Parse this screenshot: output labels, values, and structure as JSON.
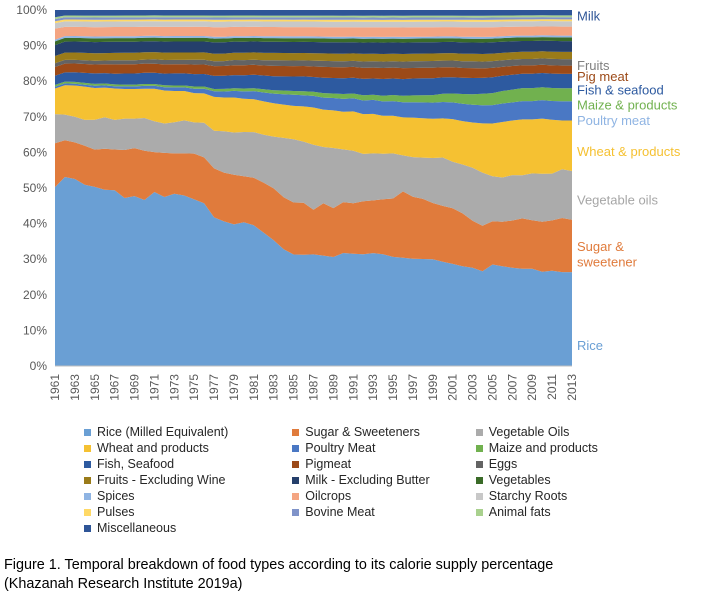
{
  "chart_data": {
    "type": "area",
    "stacked": "percent",
    "ylim": [
      0,
      100
    ],
    "y_ticks": [
      "0%",
      "10%",
      "20%",
      "30%",
      "40%",
      "50%",
      "60%",
      "70%",
      "80%",
      "90%",
      "100%"
    ],
    "x": [
      1961,
      1962,
      1963,
      1964,
      1965,
      1966,
      1967,
      1968,
      1969,
      1970,
      1971,
      1972,
      1973,
      1974,
      1975,
      1976,
      1977,
      1978,
      1979,
      1980,
      1981,
      1982,
      1983,
      1984,
      1985,
      1986,
      1987,
      1988,
      1989,
      1990,
      1991,
      1992,
      1993,
      1994,
      1995,
      1996,
      1997,
      1998,
      1999,
      2000,
      2001,
      2002,
      2003,
      2004,
      2005,
      2006,
      2007,
      2008,
      2009,
      2010,
      2011,
      2012,
      2013
    ],
    "x_tick_labels": [
      "1961",
      "1963",
      "1965",
      "1967",
      "1969",
      "1971",
      "1973",
      "1975",
      "1977",
      "1979",
      "1981",
      "1983",
      "1985",
      "1987",
      "1989",
      "1991",
      "1993",
      "1995",
      "1997",
      "1999",
      "2001",
      "2003",
      "2005",
      "2007",
      "2009",
      "2011",
      "2013"
    ],
    "grid": "horizontal",
    "legend_position": "bottom",
    "series": [
      {
        "name": "Rice (Milled Equivalent)",
        "color": "#6a9fd4",
        "values": [
          49,
          51.5,
          51,
          49,
          48,
          47.5,
          47.5,
          45.5,
          46,
          45.5,
          48,
          46,
          47,
          46.5,
          45.5,
          44.5,
          39.5,
          38.5,
          38.5,
          39,
          38.5,
          36,
          34,
          31.5,
          30,
          30,
          30,
          29.5,
          29,
          30,
          30,
          29.5,
          30,
          29.5,
          29,
          28.5,
          28.5,
          28.5,
          28.5,
          28,
          27.5,
          26.5,
          26,
          25,
          27,
          27,
          27,
          27,
          27,
          26.5,
          26.5,
          26,
          26
        ]
      },
      {
        "name": "Sugar & Sweeteners",
        "color": "#e07b3c",
        "values": [
          12,
          10,
          10,
          10.5,
          10,
          11,
          11,
          13,
          13,
          13.5,
          11,
          12,
          11,
          11.5,
          12.5,
          12.5,
          13,
          13,
          13.5,
          12.5,
          13,
          13.5,
          14,
          14,
          14,
          14,
          12,
          14,
          13,
          13.5,
          13.5,
          14,
          14,
          14.5,
          15.5,
          17.5,
          16.5,
          16,
          15,
          15,
          15,
          14,
          12.5,
          12,
          11.5,
          12,
          13,
          14,
          13.5,
          14,
          14,
          15,
          14.5
        ]
      },
      {
        "name": "Vegetable Oils",
        "color": "#ababab",
        "values": [
          8,
          7,
          7,
          7,
          8,
          8.5,
          8,
          8.5,
          8,
          9,
          8.5,
          8,
          8.5,
          9,
          8.5,
          9.5,
          10,
          11,
          11.5,
          12,
          12.5,
          13,
          14,
          16,
          17,
          16.5,
          17.5,
          15,
          16,
          14,
          14,
          12.5,
          12.5,
          12,
          12,
          9.5,
          10.5,
          11,
          12,
          13,
          12.5,
          13,
          14,
          14,
          12,
          12,
          12.5,
          12,
          13,
          13.5,
          13,
          13.5,
          13.5
        ]
      },
      {
        "name": "Wheat and products",
        "color": "#f5c132",
        "values": [
          7,
          8,
          8.5,
          9,
          8.5,
          8,
          8.5,
          8,
          8,
          8,
          9,
          9,
          8.5,
          8,
          8,
          8,
          9,
          9,
          9.5,
          9,
          9,
          9,
          9,
          9,
          9,
          9.5,
          10,
          10,
          10,
          10,
          10.5,
          10.5,
          10.5,
          10,
          10,
          10,
          10.5,
          10.5,
          10.5,
          10.5,
          11.5,
          11.5,
          12,
          13,
          14,
          15,
          15,
          15.5,
          15,
          15.5,
          15,
          13.5,
          14
        ]
      },
      {
        "name": "Poultry Meat",
        "color": "#4a78c4",
        "values": [
          0.5,
          0.5,
          0.5,
          0.5,
          0.6,
          0.6,
          0.6,
          0.7,
          0.7,
          0.8,
          0.8,
          0.9,
          1,
          1,
          1.2,
          1.3,
          1.5,
          1.6,
          1.8,
          2,
          2.2,
          2.4,
          2.6,
          2.8,
          3,
          3,
          3.1,
          3.2,
          3.3,
          3.4,
          3.5,
          3.6,
          3.7,
          3.8,
          3.9,
          4,
          4.1,
          4.2,
          4.3,
          4.4,
          4.5,
          4.6,
          4.7,
          4.8,
          4.9,
          5,
          5,
          5.1,
          5.1,
          5.2,
          5.2,
          5.3,
          5.3
        ]
      },
      {
        "name": "Maize and products",
        "color": "#71b14f",
        "values": [
          0.5,
          0.5,
          0.5,
          0.5,
          0.5,
          0.5,
          0.5,
          0.5,
          0.5,
          0.5,
          0.5,
          0.5,
          0.5,
          0.5,
          0.6,
          0.6,
          0.6,
          0.7,
          0.7,
          0.8,
          0.8,
          0.9,
          0.9,
          1,
          1,
          1.1,
          1.1,
          1.2,
          1.2,
          1.3,
          1.3,
          1.4,
          1.4,
          1.5,
          1.6,
          1.7,
          1.8,
          1.9,
          2,
          2.2,
          2.4,
          2.6,
          2.8,
          3,
          3.2,
          3.4,
          3.5,
          3.6,
          3.6,
          3.6,
          3.6,
          3.6,
          3.6
        ]
      },
      {
        "name": "Fish, Seafood",
        "color": "#2d5aa0",
        "values": [
          2.5,
          2.5,
          2.6,
          2.7,
          2.8,
          2.8,
          2.9,
          3,
          3,
          3.1,
          3.1,
          3.2,
          3.3,
          3.3,
          3.4,
          3.4,
          3.5,
          3.5,
          3.6,
          3.6,
          3.7,
          3.7,
          3.8,
          3.8,
          3.9,
          4,
          4,
          4.1,
          4.1,
          4.2,
          4.2,
          4.3,
          4.3,
          4.4,
          4.4,
          4.4,
          4.5,
          4.5,
          4.5,
          4.4,
          4.4,
          4.3,
          4.3,
          4.2,
          4.2,
          4.1,
          4.1,
          4,
          4,
          4,
          4,
          4,
          4
        ]
      },
      {
        "name": "Pigmeat",
        "color": "#9c4a18",
        "values": [
          2.4,
          2.4,
          2.4,
          2.4,
          2.4,
          2.4,
          2.5,
          2.5,
          2.5,
          2.5,
          2.5,
          2.5,
          2.5,
          2.5,
          2.6,
          2.6,
          2.6,
          2.6,
          2.7,
          2.7,
          2.7,
          2.7,
          2.8,
          2.8,
          2.8,
          2.8,
          2.8,
          2.9,
          2.9,
          2.9,
          2.9,
          2.9,
          2.9,
          2.9,
          2.9,
          2.9,
          2.8,
          2.8,
          2.8,
          2.7,
          2.7,
          2.6,
          2.6,
          2.5,
          2.5,
          2.4,
          2.4,
          2.3,
          2.3,
          2.3,
          2.3,
          2.3,
          2.3
        ]
      },
      {
        "name": "Eggs",
        "color": "#636363",
        "values": [
          1,
          1,
          1,
          1,
          1,
          1,
          1.1,
          1.1,
          1.1,
          1.1,
          1.2,
          1.2,
          1.2,
          1.2,
          1.3,
          1.3,
          1.3,
          1.3,
          1.4,
          1.4,
          1.4,
          1.4,
          1.5,
          1.5,
          1.5,
          1.5,
          1.6,
          1.6,
          1.6,
          1.6,
          1.6,
          1.7,
          1.7,
          1.7,
          1.7,
          1.7,
          1.8,
          1.8,
          1.8,
          1.8,
          1.8,
          1.8,
          1.8,
          1.8,
          1.8,
          1.8,
          1.8,
          1.8,
          1.8,
          1.8,
          1.8,
          1.8,
          1.8
        ]
      },
      {
        "name": "Fruits - Excluding Wine",
        "color": "#9a7b19",
        "values": [
          2,
          2,
          2,
          2,
          2,
          2,
          2,
          2,
          2,
          2,
          2,
          2,
          2,
          2,
          2,
          2,
          2,
          2,
          2,
          2,
          2,
          2,
          2,
          2,
          2,
          2,
          2,
          2,
          2,
          2,
          2,
          2,
          2,
          2,
          2,
          2,
          2,
          2,
          2,
          2,
          2,
          2,
          2,
          2,
          2,
          2,
          2,
          2,
          2,
          2,
          2,
          2,
          2
        ]
      },
      {
        "name": "Milk - Excluding Butter",
        "color": "#253f6b",
        "values": [
          3,
          3,
          3,
          3,
          3,
          3,
          3,
          3,
          3,
          3,
          3,
          3,
          3,
          3,
          3,
          3,
          3,
          3,
          3,
          3,
          3,
          3,
          3,
          3,
          3,
          3,
          3,
          3,
          3,
          3,
          3,
          3,
          3,
          3,
          3,
          3,
          3,
          3,
          3,
          3,
          3,
          3,
          3,
          3,
          3,
          3,
          3,
          3,
          3,
          3,
          3,
          3,
          3
        ]
      },
      {
        "name": "Vegetables",
        "color": "#3a6b28",
        "values": [
          1,
          1,
          1,
          1,
          1,
          1,
          1,
          1,
          1,
          1,
          1,
          1,
          1,
          1,
          1,
          1,
          1,
          1,
          1,
          1,
          1,
          1,
          1,
          1,
          1,
          1,
          1,
          1,
          1,
          1,
          1,
          1,
          1,
          1,
          1,
          1,
          1,
          1,
          1,
          1,
          1,
          1,
          1,
          1,
          1,
          1,
          1,
          1,
          1,
          1,
          1,
          1,
          1
        ]
      },
      {
        "name": "Spices",
        "color": "#8fb4e3",
        "values": [
          0.5,
          0.5,
          0.5,
          0.5,
          0.5,
          0.5,
          0.5,
          0.5,
          0.5,
          0.5,
          0.5,
          0.5,
          0.5,
          0.5,
          0.5,
          0.5,
          0.5,
          0.5,
          0.5,
          0.5,
          0.5,
          0.5,
          0.5,
          0.5,
          0.5,
          0.5,
          0.5,
          0.5,
          0.5,
          0.5,
          0.5,
          0.5,
          0.5,
          0.5,
          0.5,
          0.5,
          0.5,
          0.5,
          0.5,
          0.5,
          0.5,
          0.5,
          0.5,
          0.5,
          0.5,
          0.5,
          0.5,
          0.5,
          0.5,
          0.5,
          0.5,
          0.5,
          0.5
        ]
      },
      {
        "name": "Oilcrops",
        "color": "#f4a582",
        "values": [
          3,
          2.5,
          2.5,
          2.5,
          2.5,
          2.5,
          2.5,
          2.5,
          2.5,
          2.5,
          2.5,
          2.5,
          2.5,
          2.5,
          2.5,
          2.5,
          2.5,
          2.5,
          2.5,
          2.5,
          2.5,
          2.5,
          2.5,
          2.5,
          2.5,
          2.5,
          2.5,
          2.5,
          2.5,
          2.5,
          2.5,
          2.5,
          2.5,
          2.5,
          2.5,
          2.5,
          2.5,
          2.5,
          2.5,
          2.5,
          2.5,
          2.5,
          2.5,
          2.5,
          2.5,
          2.5,
          2.5,
          2.5,
          2.5,
          2.5,
          2.5,
          2.5,
          2.5
        ]
      },
      {
        "name": "Starchy Roots",
        "color": "#c8c8c8",
        "values": [
          1.5,
          1.5,
          1.5,
          1.5,
          1.5,
          1.5,
          1.5,
          1.5,
          1.5,
          1.5,
          1.5,
          1.5,
          1.5,
          1.5,
          1.5,
          1.5,
          1.5,
          1.5,
          1.5,
          1.5,
          1.5,
          1.5,
          1.5,
          1.5,
          1.5,
          1.5,
          1.5,
          1.5,
          1.5,
          1.5,
          1.5,
          1.5,
          1.5,
          1.5,
          1.5,
          1.5,
          1.5,
          1.5,
          1.5,
          1.5,
          1.5,
          1.5,
          1.5,
          1.5,
          1.5,
          1.5,
          1.5,
          1.5,
          1.5,
          1.5,
          1.5,
          1.5,
          1.5
        ]
      },
      {
        "name": "Pulses",
        "color": "#ffd966",
        "values": [
          0.5,
          0.5,
          0.5,
          0.5,
          0.5,
          0.5,
          0.5,
          0.5,
          0.5,
          0.5,
          0.5,
          0.5,
          0.5,
          0.5,
          0.5,
          0.5,
          0.5,
          0.5,
          0.5,
          0.5,
          0.5,
          0.5,
          0.5,
          0.5,
          0.5,
          0.5,
          0.5,
          0.5,
          0.5,
          0.5,
          0.5,
          0.5,
          0.5,
          0.5,
          0.5,
          0.5,
          0.5,
          0.5,
          0.5,
          0.5,
          0.5,
          0.5,
          0.5,
          0.5,
          0.5,
          0.5,
          0.5,
          0.5,
          0.5,
          0.5,
          0.5,
          0.5,
          0.5
        ]
      },
      {
        "name": "Bovine Meat",
        "color": "#7f93c9",
        "values": [
          0.6,
          0.6,
          0.6,
          0.6,
          0.6,
          0.6,
          0.6,
          0.6,
          0.6,
          0.6,
          0.6,
          0.6,
          0.6,
          0.6,
          0.6,
          0.6,
          0.6,
          0.6,
          0.6,
          0.6,
          0.6,
          0.6,
          0.6,
          0.6,
          0.6,
          0.6,
          0.6,
          0.6,
          0.6,
          0.6,
          0.6,
          0.6,
          0.6,
          0.6,
          0.6,
          0.6,
          0.6,
          0.6,
          0.6,
          0.6,
          0.6,
          0.6,
          0.6,
          0.6,
          0.6,
          0.6,
          0.6,
          0.6,
          0.6,
          0.6,
          0.6,
          0.6,
          0.6
        ]
      },
      {
        "name": "Animal fats",
        "color": "#a9d18e",
        "values": [
          0.5,
          0.5,
          0.5,
          0.5,
          0.5,
          0.5,
          0.5,
          0.5,
          0.5,
          0.5,
          0.5,
          0.5,
          0.5,
          0.5,
          0.5,
          0.5,
          0.5,
          0.5,
          0.5,
          0.5,
          0.5,
          0.5,
          0.5,
          0.5,
          0.5,
          0.5,
          0.5,
          0.5,
          0.5,
          0.5,
          0.5,
          0.5,
          0.5,
          0.5,
          0.5,
          0.5,
          0.5,
          0.5,
          0.5,
          0.5,
          0.5,
          0.5,
          0.5,
          0.5,
          0.5,
          0.5,
          0.5,
          0.5,
          0.5,
          0.5,
          0.5,
          0.5,
          0.5
        ]
      },
      {
        "name": "Miscellaneous",
        "color": "#2e5597",
        "values": [
          2,
          1.5,
          1.5,
          1.5,
          1.5,
          1.5,
          1.5,
          1.5,
          1.5,
          1.5,
          1.5,
          1.5,
          1.5,
          1.5,
          1.5,
          1.5,
          1.5,
          1.5,
          1.5,
          1.5,
          1.5,
          1.5,
          1.5,
          1.5,
          1.5,
          1.5,
          1.5,
          1.5,
          1.5,
          1.5,
          1.5,
          1.5,
          1.5,
          1.5,
          1.5,
          1.5,
          1.5,
          1.5,
          1.5,
          1.5,
          1.5,
          1.5,
          1.5,
          1.5,
          1.5,
          1.5,
          1.5,
          1.5,
          1.5,
          1.5,
          1.5,
          1.5,
          1.5
        ]
      }
    ],
    "end_labels": [
      {
        "text": "Milk",
        "y_value": 98.5,
        "color": "#2e5597"
      },
      {
        "text": "Fruits",
        "y_value": 84.6,
        "color": "#7f7f7f"
      },
      {
        "text": "Pig meat",
        "y_value": 81.4,
        "color": "#9c4a18"
      },
      {
        "text": "Fish & seafood",
        "y_value": 77.6,
        "color": "#2d5aa0"
      },
      {
        "text": "Maize & products",
        "y_value": 73.4,
        "color": "#71b14f"
      },
      {
        "text": "Poultry meat",
        "y_value": 69.1,
        "color": "#8fb4e3"
      },
      {
        "text": "Wheat & products",
        "y_value": 60.4,
        "color": "#f5c132"
      },
      {
        "text": "Vegetable oils",
        "y_value": 46.7,
        "color": "#a6a6a6"
      },
      {
        "text": "Sugar &",
        "y_value": 33.7,
        "color": "#e07b3c"
      },
      {
        "text": "sweetener",
        "y_value": 29.4,
        "color": "#e07b3c"
      },
      {
        "text": "Rice",
        "y_value": 5.9,
        "color": "#6a9fd4"
      }
    ]
  },
  "caption": {
    "line1": "Figure 1. Temporal breakdown of food types according to its calorie supply percentage",
    "line2": "(Khazanah Research Institute 2019a)"
  }
}
